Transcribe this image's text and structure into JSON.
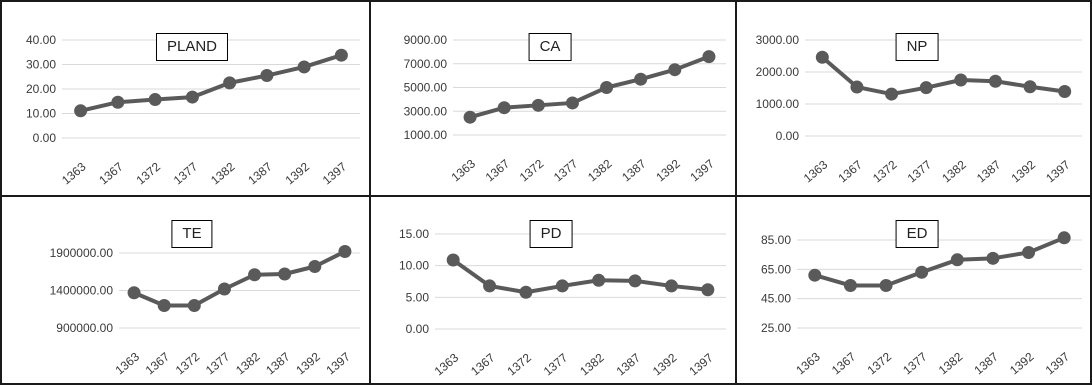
{
  "chart_data": [
    {
      "type": "line",
      "title": "PLAND",
      "categories": [
        "1363",
        "1367",
        "1372",
        "1377",
        "1382",
        "1387",
        "1392",
        "1397"
      ],
      "values": [
        11.1,
        14.6,
        15.7,
        16.7,
        22.5,
        25.5,
        29.0,
        33.8
      ],
      "yticks": [
        "0.00",
        "10.00",
        "20.00",
        "30.00",
        "40.00"
      ],
      "ylim": [
        0,
        40
      ],
      "grid": true,
      "color": "#5a5a5a"
    },
    {
      "type": "line",
      "title": "CA",
      "categories": [
        "1363",
        "1367",
        "1372",
        "1377",
        "1382",
        "1387",
        "1392",
        "1397"
      ],
      "values": [
        2500,
        3300,
        3500,
        3700,
        5000,
        5700,
        6500,
        7600
      ],
      "yticks": [
        "1000.00",
        "3000.00",
        "5000.00",
        "7000.00",
        "9000.00"
      ],
      "ylim": [
        1000,
        9000
      ],
      "grid": true,
      "color": "#5a5a5a"
    },
    {
      "type": "line",
      "title": "NP",
      "categories": [
        "1363",
        "1367",
        "1372",
        "1377",
        "1382",
        "1387",
        "1392",
        "1397"
      ],
      "values": [
        2460,
        1530,
        1310,
        1510,
        1750,
        1710,
        1540,
        1390
      ],
      "yticks": [
        "0.00",
        "1000.00",
        "2000.00",
        "3000.00"
      ],
      "ylim": [
        0,
        3000
      ],
      "grid": true,
      "color": "#5a5a5a"
    },
    {
      "type": "line",
      "title": "TE",
      "categories": [
        "1363",
        "1367",
        "1372",
        "1377",
        "1382",
        "1387",
        "1392",
        "1397"
      ],
      "values": [
        1370000,
        1200000,
        1200000,
        1420000,
        1610000,
        1620000,
        1720000,
        1920000
      ],
      "yticks": [
        "900000.00",
        "1400000.00",
        "1900000.00"
      ],
      "ylim": [
        900000,
        1900000
      ],
      "grid": true,
      "color": "#5a5a5a"
    },
    {
      "type": "line",
      "title": "PD",
      "categories": [
        "1363",
        "1367",
        "1372",
        "1377",
        "1382",
        "1387",
        "1392",
        "1397"
      ],
      "values": [
        10.9,
        6.8,
        5.8,
        6.8,
        7.7,
        7.6,
        6.8,
        6.2
      ],
      "yticks": [
        "0.00",
        "5.00",
        "10.00",
        "15.00"
      ],
      "ylim": [
        0,
        15
      ],
      "grid": true,
      "color": "#5a5a5a"
    },
    {
      "type": "line",
      "title": "ED",
      "categories": [
        "1363",
        "1367",
        "1372",
        "1377",
        "1382",
        "1387",
        "1392",
        "1397"
      ],
      "values": [
        61,
        54,
        54,
        63,
        71.5,
        72.5,
        76.5,
        86.5
      ],
      "yticks": [
        "25.00",
        "45.00",
        "65.00",
        "85.00"
      ],
      "ylim": [
        25,
        85
      ],
      "grid": true,
      "color": "#5a5a5a"
    }
  ]
}
